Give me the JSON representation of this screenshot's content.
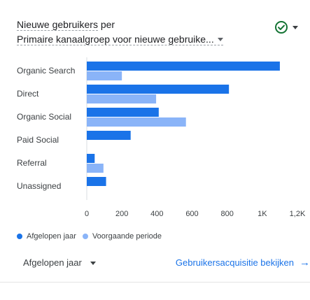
{
  "header": {
    "metric_label": "Nieuwe gebruikers",
    "per_label": "per",
    "dimension_label": "Primaire kanaalgroep voor nieuwe gebruike..."
  },
  "status": {
    "icon": "check-circle-icon",
    "color": "#137333"
  },
  "chart_data": {
    "type": "bar",
    "orientation": "horizontal",
    "categories": [
      "Organic Search",
      "Direct",
      "Organic Social",
      "Paid Social",
      "Referral",
      "Unassigned"
    ],
    "series": [
      {
        "name": "Afgelopen jaar",
        "color": "#1a73e8",
        "values": [
          1100,
          810,
          410,
          250,
          45,
          110
        ]
      },
      {
        "name": "Voorgaande periode",
        "color": "#8ab4f8",
        "values": [
          200,
          395,
          565,
          0,
          95,
          0
        ]
      }
    ],
    "x_ticks": [
      "0",
      "200",
      "400",
      "600",
      "800",
      "1K",
      "1,2K"
    ],
    "x_tick_values": [
      0,
      200,
      400,
      600,
      800,
      1000,
      1200
    ],
    "xlim": [
      0,
      1200
    ],
    "grid": false,
    "legend_position": "bottom-left"
  },
  "legend": {
    "items": [
      {
        "label": "Afgelopen jaar",
        "color": "#1a73e8"
      },
      {
        "label": "Voorgaande periode",
        "color": "#8ab4f8"
      }
    ]
  },
  "footer": {
    "date_range": "Afgelopen jaar",
    "report_link": "Gebruikersacquisitie bekijken",
    "arrow": "→"
  }
}
